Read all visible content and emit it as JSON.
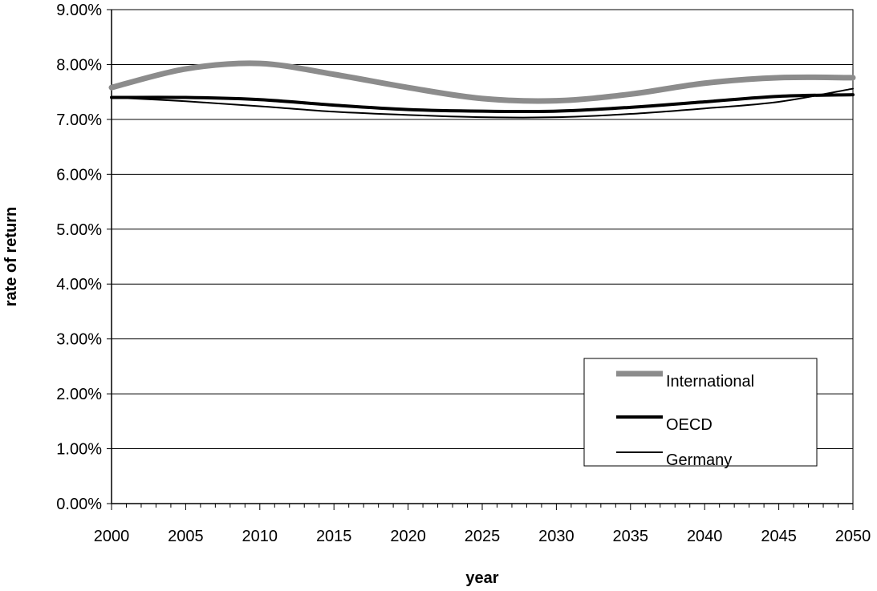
{
  "chart_data": {
    "type": "line",
    "title": "",
    "xlabel": "year",
    "ylabel": "rate of return",
    "xlim": [
      2000,
      2050
    ],
    "ylim": [
      0.0,
      9.0
    ],
    "x_ticks": [
      "2000",
      "2005",
      "2010",
      "2015",
      "2020",
      "2025",
      "2030",
      "2035",
      "2040",
      "2045",
      "2050"
    ],
    "y_ticks": [
      "0.00%",
      "1.00%",
      "2.00%",
      "3.00%",
      "4.00%",
      "5.00%",
      "6.00%",
      "7.00%",
      "8.00%",
      "9.00%"
    ],
    "y_unit": "percent",
    "grid": "horizontal",
    "legend_position": "lower-right",
    "x": [
      2000,
      2005,
      2010,
      2015,
      2020,
      2025,
      2030,
      2035,
      2040,
      2045,
      2050
    ],
    "series": [
      {
        "name": "International",
        "color": "#8c8c8c",
        "values": [
          7.58,
          7.92,
          8.02,
          7.82,
          7.58,
          7.38,
          7.34,
          7.46,
          7.66,
          7.76,
          7.76
        ]
      },
      {
        "name": "OECD",
        "color": "#000000",
        "values": [
          7.4,
          7.4,
          7.36,
          7.26,
          7.18,
          7.15,
          7.15,
          7.22,
          7.32,
          7.42,
          7.45
        ]
      },
      {
        "name": "Germany",
        "color": "#000000",
        "values": [
          7.4,
          7.33,
          7.24,
          7.14,
          7.08,
          7.04,
          7.04,
          7.1,
          7.2,
          7.32,
          7.56
        ]
      }
    ]
  }
}
